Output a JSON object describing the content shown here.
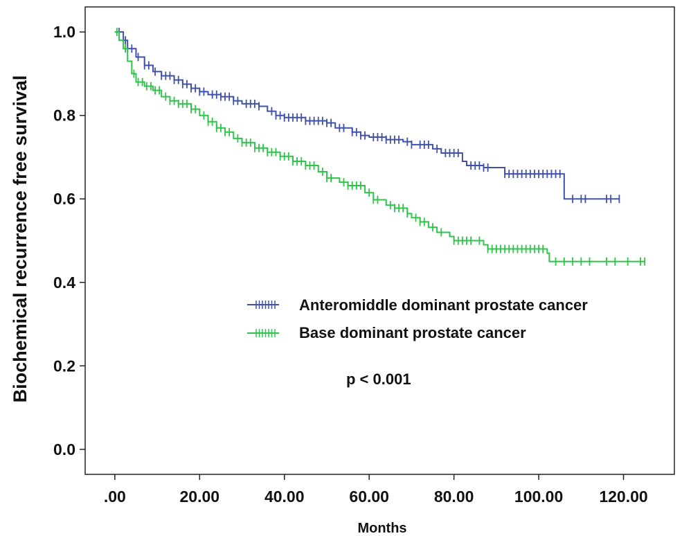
{
  "chart_data": {
    "type": "line",
    "title": "",
    "xlabel": "Months",
    "ylabel": "Biochemical recurrence free survival",
    "xlim": [
      -7,
      132
    ],
    "ylim": [
      -0.06,
      1.06
    ],
    "x_ticks": [
      0,
      20,
      40,
      60,
      80,
      100,
      120
    ],
    "x_tick_labels": [
      ".00",
      "20.00",
      "40.00",
      "60.00",
      "80.00",
      "100.00",
      "120.00"
    ],
    "y_ticks": [
      0.0,
      0.2,
      0.4,
      0.6,
      0.8,
      1.0
    ],
    "y_tick_labels": [
      "0.0",
      "0.2",
      "0.4",
      "0.6",
      "0.8",
      "1.0"
    ],
    "grid": false,
    "legend_position": "center-right",
    "annotation": "p < 0.001",
    "series": [
      {
        "name": "Anteromiddle dominant prostate cancer",
        "color": "#3f51a8",
        "points": [
          [
            0,
            1.0
          ],
          [
            2,
            0.98
          ],
          [
            3,
            0.96
          ],
          [
            5,
            0.94
          ],
          [
            7,
            0.92
          ],
          [
            9,
            0.905
          ],
          [
            11,
            0.895
          ],
          [
            14,
            0.885
          ],
          [
            16,
            0.875
          ],
          [
            18,
            0.865
          ],
          [
            20,
            0.857
          ],
          [
            22,
            0.85
          ],
          [
            25,
            0.845
          ],
          [
            28,
            0.835
          ],
          [
            30,
            0.828
          ],
          [
            34,
            0.822
          ],
          [
            36,
            0.81
          ],
          [
            38,
            0.8
          ],
          [
            40,
            0.795
          ],
          [
            45,
            0.787
          ],
          [
            50,
            0.782
          ],
          [
            52,
            0.77
          ],
          [
            56,
            0.76
          ],
          [
            58,
            0.752
          ],
          [
            60,
            0.748
          ],
          [
            64,
            0.742
          ],
          [
            68,
            0.737
          ],
          [
            70,
            0.73
          ],
          [
            75,
            0.72
          ],
          [
            77,
            0.71
          ],
          [
            82,
            0.69
          ],
          [
            83,
            0.68
          ],
          [
            87,
            0.675
          ],
          [
            92,
            0.66
          ],
          [
            103,
            0.66
          ],
          [
            106,
            0.6
          ],
          [
            119,
            0.6
          ]
        ],
        "censor_x": [
          1,
          2.5,
          4,
          5.5,
          7,
          8,
          9.5,
          11,
          12,
          13,
          14,
          15,
          16,
          17,
          18,
          19,
          20,
          21,
          23,
          24,
          25,
          26,
          27,
          28,
          29,
          31,
          32,
          33,
          34,
          37,
          38,
          39,
          40,
          41,
          42,
          43,
          44,
          45,
          46,
          47,
          48,
          49,
          50,
          51,
          53,
          54,
          56,
          57,
          58,
          59,
          61,
          62,
          63,
          64,
          65,
          66,
          67,
          69,
          70,
          72,
          73,
          74,
          76,
          78,
          79,
          80,
          81,
          84,
          85,
          86,
          87,
          88,
          92,
          93,
          94,
          95,
          96,
          97,
          98,
          99,
          100,
          101,
          102,
          103,
          104,
          105,
          108,
          110,
          111,
          116,
          117,
          119
        ]
      },
      {
        "name": "Base dominant prostate cancer",
        "color": "#2ec44a",
        "points": [
          [
            0,
            1.0
          ],
          [
            1,
            0.98
          ],
          [
            2,
            0.96
          ],
          [
            3,
            0.93
          ],
          [
            4,
            0.9
          ],
          [
            5,
            0.88
          ],
          [
            7,
            0.87
          ],
          [
            9,
            0.86
          ],
          [
            11,
            0.845
          ],
          [
            13,
            0.835
          ],
          [
            15,
            0.828
          ],
          [
            18,
            0.815
          ],
          [
            20,
            0.8
          ],
          [
            22,
            0.785
          ],
          [
            24,
            0.77
          ],
          [
            26,
            0.76
          ],
          [
            28,
            0.745
          ],
          [
            30,
            0.735
          ],
          [
            33,
            0.722
          ],
          [
            36,
            0.712
          ],
          [
            39,
            0.702
          ],
          [
            42,
            0.69
          ],
          [
            45,
            0.68
          ],
          [
            48,
            0.665
          ],
          [
            50,
            0.65
          ],
          [
            53,
            0.64
          ],
          [
            55,
            0.632
          ],
          [
            59,
            0.615
          ],
          [
            61,
            0.598
          ],
          [
            64,
            0.585
          ],
          [
            66,
            0.578
          ],
          [
            69,
            0.565
          ],
          [
            70,
            0.555
          ],
          [
            72,
            0.545
          ],
          [
            74,
            0.532
          ],
          [
            76,
            0.52
          ],
          [
            79,
            0.51
          ],
          [
            80,
            0.5
          ],
          [
            87,
            0.49
          ],
          [
            88,
            0.48
          ],
          [
            102,
            0.47
          ],
          [
            102.5,
            0.45
          ],
          [
            125,
            0.45
          ]
        ],
        "censor_x": [
          0.5,
          2.5,
          4.5,
          5.5,
          6.5,
          7.5,
          8.5,
          9.5,
          10.5,
          12,
          13,
          14,
          15,
          16,
          17,
          18,
          19,
          21,
          22,
          23,
          24,
          25,
          26,
          27,
          29,
          30,
          31,
          32,
          33,
          34,
          35,
          36,
          37,
          38,
          39,
          40,
          41,
          42,
          43,
          44,
          45,
          46,
          47,
          49,
          50,
          51,
          54,
          55,
          56,
          57,
          58,
          60,
          61,
          62,
          65,
          66,
          67,
          68,
          69,
          71,
          72,
          73,
          75,
          77,
          80,
          81,
          82,
          83,
          84,
          86,
          88,
          89,
          90,
          91,
          92,
          93,
          94,
          95,
          96,
          97,
          98,
          99,
          100,
          101,
          104,
          106,
          108,
          110,
          112,
          116,
          118,
          121,
          124,
          125
        ]
      }
    ]
  }
}
